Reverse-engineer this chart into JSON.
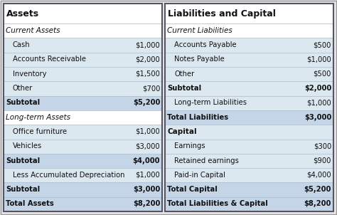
{
  "left_title": "Assets",
  "right_title": "Liabilities and Capital",
  "left_rows": [
    {
      "label": "Current Assets",
      "value": "",
      "style": "section_header",
      "indent": 0
    },
    {
      "label": "Cash",
      "value": "$1,000",
      "style": "normal",
      "indent": 1
    },
    {
      "label": "Accounts Receivable",
      "value": "$2,000",
      "style": "normal",
      "indent": 1
    },
    {
      "label": "Inventory",
      "value": "$1,500",
      "style": "normal",
      "indent": 1
    },
    {
      "label": "Other",
      "value": "$700",
      "style": "normal",
      "indent": 1
    },
    {
      "label": "Subtotal",
      "value": "$5,200",
      "style": "subtotal",
      "indent": 0
    },
    {
      "label": "Long-term Assets",
      "value": "",
      "style": "section_header",
      "indent": 0
    },
    {
      "label": "Office furniture",
      "value": "$1,000",
      "style": "normal",
      "indent": 1
    },
    {
      "label": "Vehicles",
      "value": "$3,000",
      "style": "normal",
      "indent": 1
    },
    {
      "label": "Subtotal",
      "value": "$4,000",
      "style": "subtotal",
      "indent": 0
    },
    {
      "label": "Less Accumulated Depreciation",
      "value": "$1,000",
      "style": "normal_small",
      "indent": 1
    },
    {
      "label": "Subtotal",
      "value": "$3,000",
      "style": "subtotal",
      "indent": 0
    },
    {
      "label": "Total Assets",
      "value": "$8,200",
      "style": "total",
      "indent": 0
    }
  ],
  "right_rows": [
    {
      "label": "Current Liabilities",
      "value": "",
      "style": "section_header",
      "indent": 0
    },
    {
      "label": "Accounts Payable",
      "value": "$500",
      "style": "normal",
      "indent": 1
    },
    {
      "label": "Notes Payable",
      "value": "$1,000",
      "style": "normal",
      "indent": 1
    },
    {
      "label": "Other",
      "value": "$500",
      "style": "normal",
      "indent": 1
    },
    {
      "label": "Subtotal",
      "value": "$2,000",
      "style": "subtotal_light",
      "indent": 0
    },
    {
      "label": "Long-term Liabilities",
      "value": "$1,000",
      "style": "normal",
      "indent": 1
    },
    {
      "label": "Total Liabilities",
      "value": "$3,000",
      "style": "subtotal",
      "indent": 0
    },
    {
      "label": "Capital",
      "value": "",
      "style": "capital_header",
      "indent": 0
    },
    {
      "label": "Earnings",
      "value": "$300",
      "style": "normal",
      "indent": 1
    },
    {
      "label": "Retained earnings",
      "value": "$900",
      "style": "normal",
      "indent": 1
    },
    {
      "label": "Paid-in Capital",
      "value": "$4,000",
      "style": "normal",
      "indent": 1
    },
    {
      "label": "Total Capital",
      "value": "$5,200",
      "style": "subtotal",
      "indent": 0
    },
    {
      "label": "Total Liabilities & Capital",
      "value": "$8,200",
      "style": "total",
      "indent": 0
    }
  ],
  "bg_title": "#ffffff",
  "bg_section_header": "#ffffff",
  "bg_normal": "#dce8f0",
  "bg_subtotal": "#c5d5e8",
  "bg_subtotal_light": "#dce8f0",
  "bg_total": "#c5d5e8",
  "bg_capital_header": "#dce8f0",
  "border_outer": "#555566",
  "border_inner": "#aabbcc",
  "text_color": "#111111",
  "title_font_size": 9.0,
  "section_font_size": 7.5,
  "row_font_size": 7.2,
  "fig_bg": "#e8e8e8"
}
